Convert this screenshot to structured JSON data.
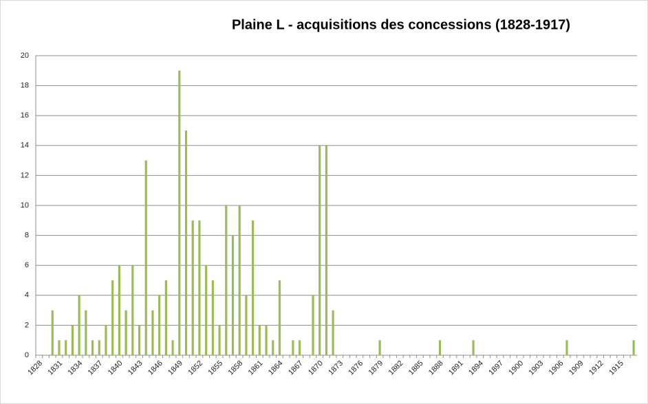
{
  "chart_data": {
    "type": "bar",
    "title": "Plaine L - acquisitions des concessions (1828-1917)",
    "categories": [
      "1828",
      null,
      null,
      "1831",
      null,
      null,
      "1834",
      null,
      null,
      "1837",
      null,
      null,
      "1840",
      null,
      null,
      "1843",
      null,
      null,
      "1846",
      null,
      null,
      "1849",
      null,
      null,
      "1852",
      null,
      null,
      "1855",
      null,
      null,
      "1858",
      null,
      null,
      "1861",
      null,
      null,
      "1864",
      null,
      null,
      "1867",
      null,
      null,
      "1870",
      null,
      null,
      "1873",
      null,
      null,
      "1876",
      null,
      null,
      "1879",
      null,
      null,
      "1882",
      null,
      null,
      "1885",
      null,
      null,
      "1888",
      null,
      null,
      "1891",
      null,
      null,
      "1894",
      null,
      null,
      "1897",
      null,
      null,
      "1900",
      null,
      null,
      "1903",
      null,
      null,
      "1906",
      null,
      null,
      "1909",
      null,
      null,
      "1912",
      null,
      null,
      "1915",
      null,
      null
    ],
    "values": [
      0,
      0,
      3,
      1,
      1,
      2,
      4,
      3,
      1,
      1,
      2,
      5,
      6,
      3,
      6,
      2,
      13,
      3,
      4,
      5,
      1,
      19,
      15,
      9,
      9,
      6,
      5,
      2,
      10,
      8,
      10,
      4,
      9,
      2,
      2,
      1,
      5,
      0,
      1,
      1,
      0,
      4,
      14,
      14,
      3,
      0,
      0,
      0,
      0,
      0,
      0,
      1,
      0,
      0,
      0,
      0,
      0,
      0,
      0,
      0,
      1,
      0,
      0,
      0,
      0,
      1,
      0,
      0,
      0,
      0,
      0,
      0,
      0,
      0,
      0,
      0,
      0,
      0,
      0,
      1,
      0,
      0,
      0,
      0,
      0,
      0,
      0,
      0,
      0,
      1
    ],
    "color": "#9bbb59",
    "ylim": [
      0,
      20
    ],
    "yticks": [
      0,
      2,
      4,
      6,
      8,
      10,
      12,
      14,
      16,
      18,
      20
    ],
    "grid": true
  }
}
